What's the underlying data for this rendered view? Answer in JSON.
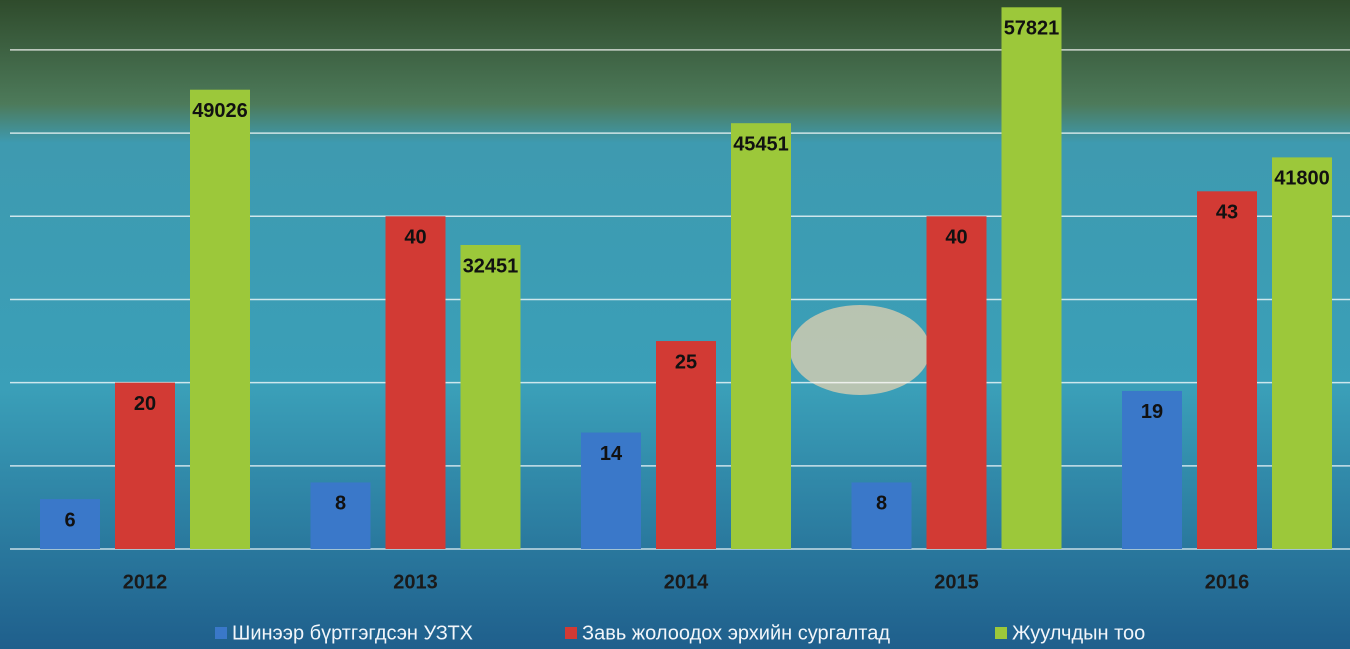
{
  "chart_data": {
    "type": "bar",
    "categories": [
      "2012",
      "2013",
      "2014",
      "2015",
      "2016"
    ],
    "series": [
      {
        "name": "Шинээр бүртгэгдсэн УЗТХ",
        "color": "#3a78c9",
        "values": [
          6,
          8,
          14,
          8,
          19
        ]
      },
      {
        "name": "Завь жолоодох эрхийн сургалтад",
        "color": "#d23a34",
        "values": [
          20,
          40,
          25,
          40,
          43
        ]
      },
      {
        "name": "Жуулчдын тоо",
        "color": "#9cc83a",
        "values": [
          49026,
          32451,
          45451,
          57821,
          41800
        ],
        "axis": "y2"
      }
    ],
    "ylim": [
      0,
      66
    ],
    "yticks": [
      0,
      10,
      20,
      30,
      40,
      50,
      60
    ],
    "y2lim": [
      0,
      58600
    ],
    "grid": true
  }
}
